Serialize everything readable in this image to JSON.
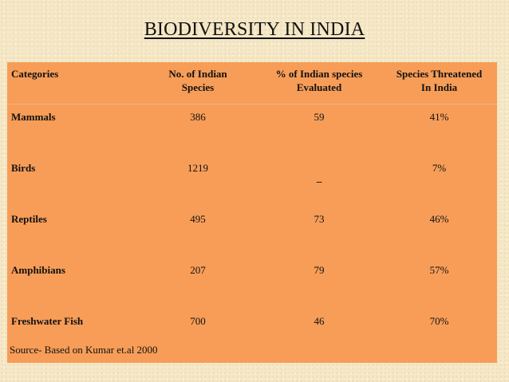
{
  "title": "BIODIVERSITY IN INDIA",
  "table": {
    "headers": [
      "Categories",
      "No. of  Indian\nSpecies",
      "% of Indian species\nEvaluated",
      "Species Threatened\nIn India"
    ],
    "rows": [
      {
        "category": "Mammals",
        "species": "386",
        "evaluated": "59",
        "threatened": "41%"
      },
      {
        "category": "Birds",
        "species": "1219",
        "evaluated": "_",
        "threatened": "7%"
      },
      {
        "category": "Reptiles",
        "species": "495",
        "evaluated": "73",
        "threatened": "46%"
      },
      {
        "category": "Amphibians",
        "species": "207",
        "evaluated": "79",
        "threatened": "57%"
      },
      {
        "category": "Freshwater Fish",
        "species": "700",
        "evaluated": "46",
        "threatened": "70%"
      }
    ]
  },
  "source": "Source- Based on Kumar et.al 2000",
  "colors": {
    "table_bg": "#f79d58",
    "page_bg": "#f6e8c6"
  }
}
